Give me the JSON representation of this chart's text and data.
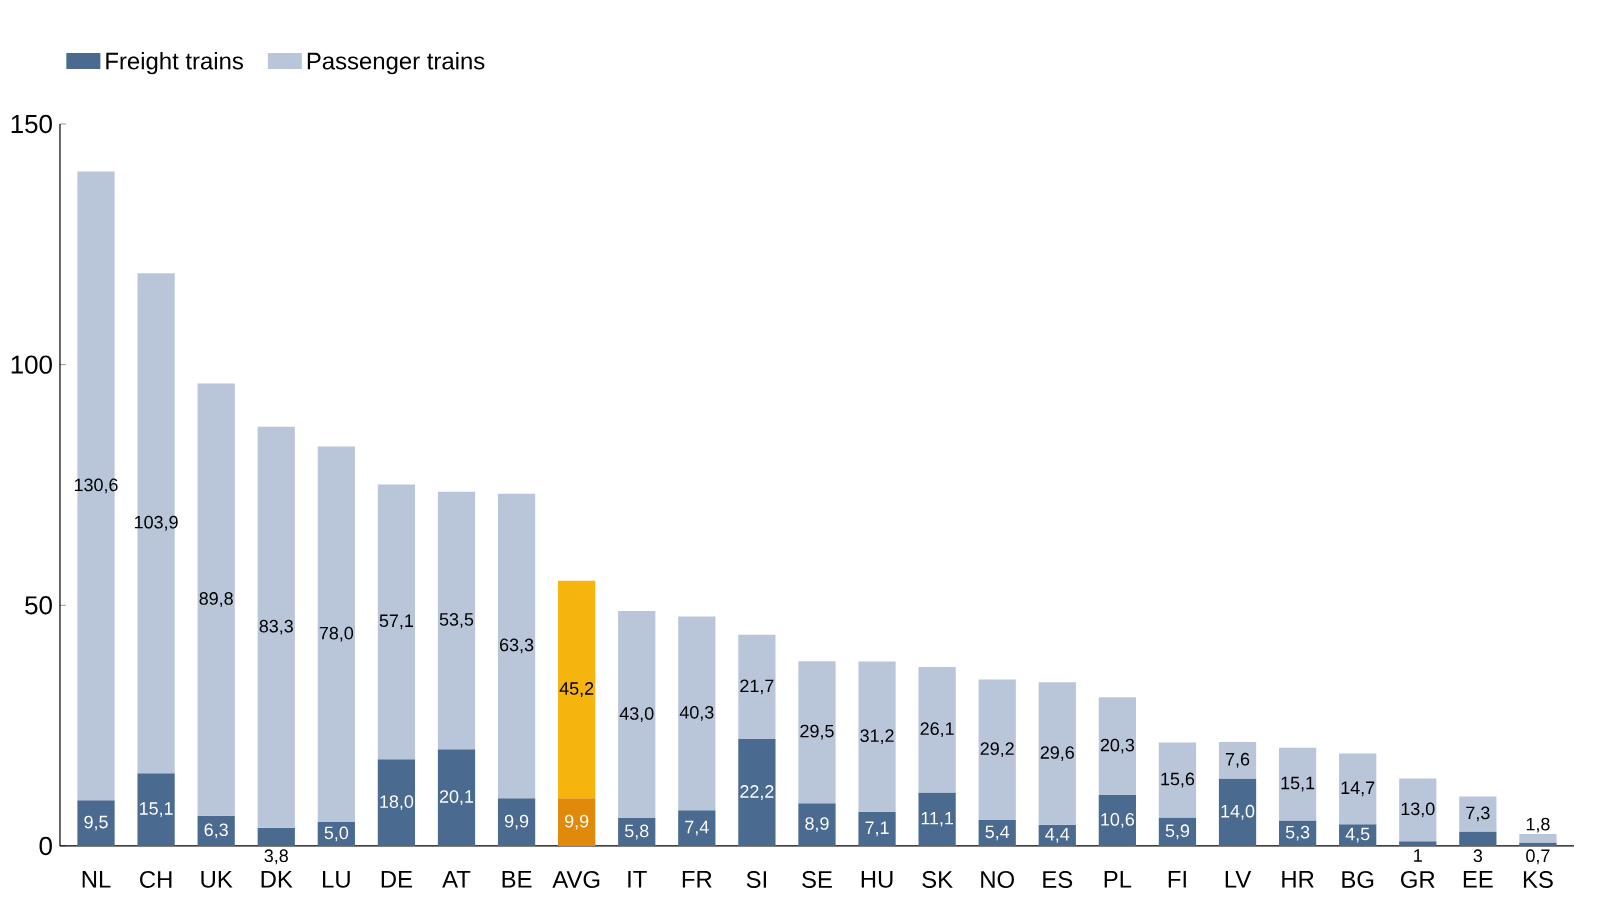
{
  "chart_data": {
    "type": "bar",
    "stacked": true,
    "legend": "top left",
    "ylim": [
      0,
      150
    ],
    "yticks": [
      0,
      50,
      100,
      150
    ],
    "grid": false,
    "categories": [
      "NL",
      "CH",
      "UK",
      "DK",
      "LU",
      "DE",
      "AT",
      "BE",
      "AVG",
      "IT",
      "FR",
      "SI",
      "SE",
      "HU",
      "SK",
      "NO",
      "ES",
      "PL",
      "FI",
      "LV",
      "HR",
      "BG",
      "GR",
      "EE",
      "KS"
    ],
    "series": [
      {
        "name": "Freight trains",
        "color": "#4a6a8f",
        "colors": [
          "#4a6a8f",
          "#4a6a8f",
          "#4a6a8f",
          "#4a6a8f",
          "#4a6a8f",
          "#4a6a8f",
          "#4a6a8f",
          "#4a6a8f",
          "#e0890a",
          "#4a6a8f",
          "#4a6a8f",
          "#4a6a8f",
          "#4a6a8f",
          "#4a6a8f",
          "#4a6a8f",
          "#4a6a8f",
          "#4a6a8f",
          "#4a6a8f",
          "#4a6a8f",
          "#4a6a8f",
          "#4a6a8f",
          "#4a6a8f",
          "#4a6a8f",
          "#4a6a8f",
          "#4a6a8f"
        ],
        "values": [
          9.5,
          15.1,
          6.3,
          3.8,
          5.0,
          18.0,
          20.1,
          9.9,
          9.9,
          5.8,
          7.4,
          22.2,
          8.9,
          7.1,
          11.1,
          5.4,
          4.4,
          10.6,
          5.9,
          14.0,
          5.3,
          4.5,
          1,
          3,
          0.7
        ],
        "value_labels": [
          "9,5",
          "15,1",
          "6,3",
          "3,8",
          "5,0",
          "18,0",
          "20,1",
          "9,9",
          "9,9",
          "5,8",
          "7,4",
          "22,2",
          "8,9",
          "7,1",
          "11,1",
          "5,4",
          "4,4",
          "10,6",
          "5,9",
          "14,0",
          "5,3",
          "4,5",
          "1",
          "3",
          "0,7"
        ]
      },
      {
        "name": "Passenger trains",
        "color": "#b9c6da",
        "colors": [
          "#b9c6da",
          "#b9c6da",
          "#b9c6da",
          "#b9c6da",
          "#b9c6da",
          "#b9c6da",
          "#b9c6da",
          "#b9c6da",
          "#f6b40f",
          "#b9c6da",
          "#b9c6da",
          "#b9c6da",
          "#b9c6da",
          "#b9c6da",
          "#b9c6da",
          "#b9c6da",
          "#b9c6da",
          "#b9c6da",
          "#b9c6da",
          "#b9c6da",
          "#b9c6da",
          "#b9c6da",
          "#b9c6da",
          "#b9c6da",
          "#b9c6da"
        ],
        "values": [
          130.6,
          103.9,
          89.8,
          83.3,
          78.0,
          57.1,
          53.5,
          63.3,
          45.2,
          43.0,
          40.3,
          21.7,
          29.5,
          31.2,
          26.1,
          29.2,
          29.6,
          20.3,
          15.6,
          7.6,
          15.1,
          14.7,
          13.0,
          7.3,
          1.8
        ],
        "value_labels": [
          "130,6",
          "103,9",
          "89,8",
          "83,3",
          "78,0",
          "57,1",
          "53,5",
          "63,3",
          "45,2",
          "43,0",
          "40,3",
          "21,7",
          "29,5",
          "31,2",
          "26,1",
          "29,2",
          "29,6",
          "20,3",
          "15,6",
          "7,6",
          "15,1",
          "14,7",
          "13,0",
          "7,3",
          "1,8"
        ]
      }
    ]
  }
}
